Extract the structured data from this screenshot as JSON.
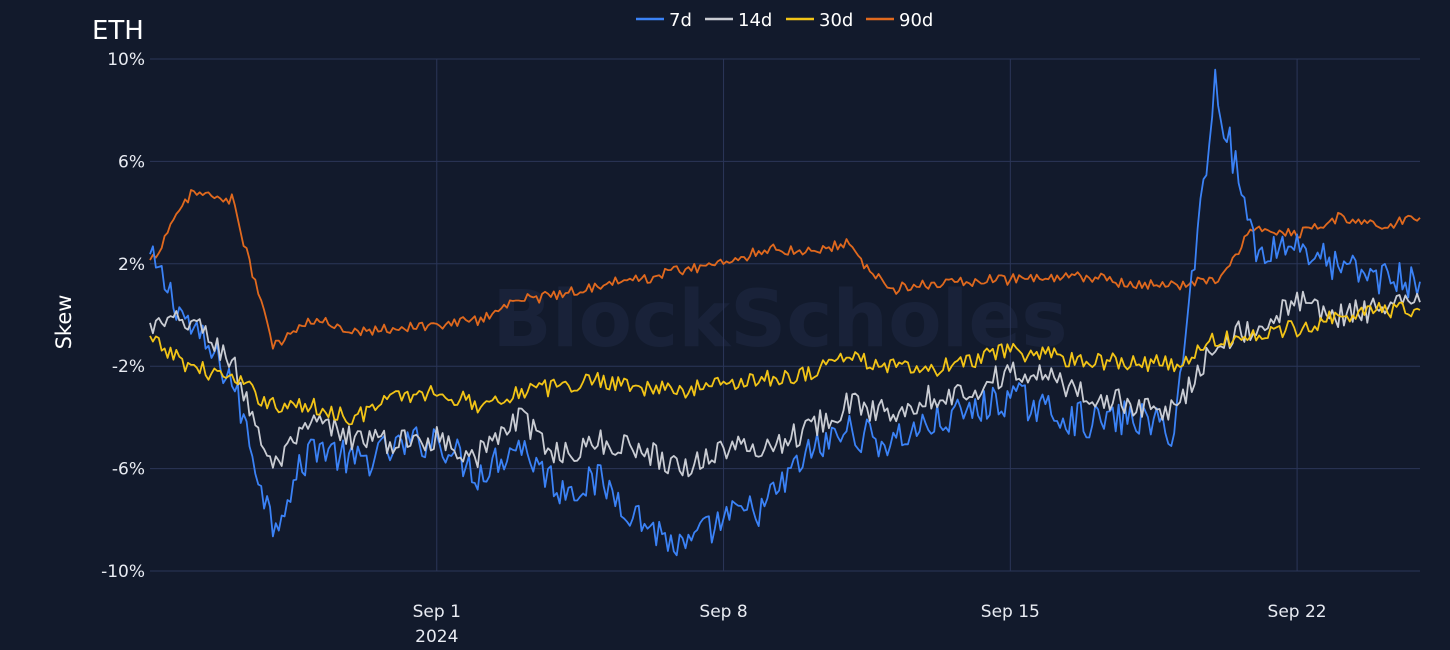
{
  "chart_data": {
    "type": "line",
    "title": "ETH",
    "ylabel": "Skew",
    "xlabel": "",
    "ylim": [
      -10,
      10
    ],
    "yticks": [
      10,
      6,
      2,
      -2,
      -6,
      -10
    ],
    "ytick_labels": [
      "10%",
      "6%",
      "2%",
      "-2%",
      "-6%",
      "-10%"
    ],
    "xlim": [
      "2024-08-25",
      "2024-09-25"
    ],
    "xticks": [
      {
        "date": "2024-09-01",
        "label": "Sep 1",
        "sublabel": "2024"
      },
      {
        "date": "2024-09-08",
        "label": "Sep 8",
        "sublabel": ""
      },
      {
        "date": "2024-09-15",
        "label": "Sep 15",
        "sublabel": ""
      },
      {
        "date": "2024-09-22",
        "label": "Sep 22",
        "sublabel": ""
      }
    ],
    "grid": true,
    "legend_position": "top-center",
    "watermark": "BlockScholes",
    "series": [
      {
        "name": "7d",
        "color": "#3b82f6",
        "x": [
          "2024-08-25",
          "2024-08-26",
          "2024-08-27",
          "2024-08-28",
          "2024-08-29",
          "2024-08-30",
          "2024-08-31",
          "2024-09-01",
          "2024-09-02",
          "2024-09-03",
          "2024-09-04",
          "2024-09-05",
          "2024-09-06",
          "2024-09-07",
          "2024-09-08",
          "2024-09-09",
          "2024-09-10",
          "2024-09-11",
          "2024-09-12",
          "2024-09-13",
          "2024-09-14",
          "2024-09-15",
          "2024-09-16",
          "2024-09-17",
          "2024-09-18",
          "2024-09-19",
          "2024-09-20",
          "2024-09-21",
          "2024-09-22",
          "2024-09-23",
          "2024-09-24",
          "2024-09-25"
        ],
        "values": [
          2.2,
          -0.5,
          -2.5,
          -8.2,
          -5.0,
          -5.8,
          -5.2,
          -4.8,
          -6.2,
          -5.0,
          -6.8,
          -6.5,
          -8.0,
          -9.2,
          -8.0,
          -7.5,
          -5.5,
          -4.5,
          -5.0,
          -4.3,
          -3.8,
          -3.2,
          -3.8,
          -4.2,
          -4.0,
          -4.5,
          9.0,
          2.5,
          2.8,
          1.8,
          1.5,
          1.3
        ]
      },
      {
        "name": "14d",
        "color": "#c9ccd3",
        "x": [
          "2024-08-25",
          "2024-08-26",
          "2024-08-27",
          "2024-08-28",
          "2024-08-29",
          "2024-08-30",
          "2024-08-31",
          "2024-09-01",
          "2024-09-02",
          "2024-09-03",
          "2024-09-04",
          "2024-09-05",
          "2024-09-06",
          "2024-09-07",
          "2024-09-08",
          "2024-09-09",
          "2024-09-10",
          "2024-09-11",
          "2024-09-12",
          "2024-09-13",
          "2024-09-14",
          "2024-09-15",
          "2024-09-16",
          "2024-09-17",
          "2024-09-18",
          "2024-09-19",
          "2024-09-20",
          "2024-09-21",
          "2024-09-22",
          "2024-09-23",
          "2024-09-24",
          "2024-09-25"
        ],
        "values": [
          -0.5,
          -0.2,
          -1.8,
          -6.0,
          -4.2,
          -4.8,
          -5.0,
          -4.8,
          -5.5,
          -4.0,
          -5.5,
          -5.0,
          -5.2,
          -6.0,
          -5.2,
          -5.2,
          -4.5,
          -3.5,
          -3.8,
          -3.2,
          -3.0,
          -2.2,
          -2.5,
          -3.2,
          -3.5,
          -3.8,
          -1.0,
          -0.5,
          0.5,
          0.0,
          0.2,
          0.5
        ]
      },
      {
        "name": "30d",
        "color": "#f2c417",
        "x": [
          "2024-08-25",
          "2024-08-26",
          "2024-08-27",
          "2024-08-28",
          "2024-08-29",
          "2024-08-30",
          "2024-08-31",
          "2024-09-01",
          "2024-09-02",
          "2024-09-03",
          "2024-09-04",
          "2024-09-05",
          "2024-09-06",
          "2024-09-07",
          "2024-09-08",
          "2024-09-09",
          "2024-09-10",
          "2024-09-11",
          "2024-09-12",
          "2024-09-13",
          "2024-09-14",
          "2024-09-15",
          "2024-09-16",
          "2024-09-17",
          "2024-09-18",
          "2024-09-19",
          "2024-09-20",
          "2024-09-21",
          "2024-09-22",
          "2024-09-23",
          "2024-09-24",
          "2024-09-25"
        ],
        "values": [
          -1.0,
          -2.0,
          -2.5,
          -3.5,
          -3.6,
          -4.0,
          -3.2,
          -3.0,
          -3.5,
          -3.0,
          -2.8,
          -2.5,
          -2.8,
          -3.0,
          -2.6,
          -2.5,
          -2.3,
          -1.6,
          -2.0,
          -2.2,
          -1.8,
          -1.4,
          -1.6,
          -1.8,
          -1.8,
          -2.0,
          -1.0,
          -0.8,
          -0.5,
          0.0,
          0.2,
          0.2
        ]
      },
      {
        "name": "90d",
        "color": "#e0691e",
        "x": [
          "2024-08-25",
          "2024-08-26",
          "2024-08-27",
          "2024-08-28",
          "2024-08-29",
          "2024-08-30",
          "2024-08-31",
          "2024-09-01",
          "2024-09-02",
          "2024-09-03",
          "2024-09-04",
          "2024-09-05",
          "2024-09-06",
          "2024-09-07",
          "2024-09-08",
          "2024-09-09",
          "2024-09-10",
          "2024-09-11",
          "2024-09-12",
          "2024-09-13",
          "2024-09-14",
          "2024-09-15",
          "2024-09-16",
          "2024-09-17",
          "2024-09-18",
          "2024-09-19",
          "2024-09-20",
          "2024-09-21",
          "2024-09-22",
          "2024-09-23",
          "2024-09-24",
          "2024-09-25"
        ],
        "values": [
          2.0,
          4.8,
          4.5,
          -1.2,
          -0.2,
          -0.6,
          -0.5,
          -0.4,
          -0.2,
          0.6,
          0.8,
          1.2,
          1.4,
          1.8,
          2.0,
          2.6,
          2.5,
          2.8,
          1.0,
          1.2,
          1.3,
          1.4,
          1.4,
          1.5,
          1.1,
          1.2,
          1.3,
          3.5,
          3.2,
          3.8,
          3.5,
          3.8
        ]
      }
    ]
  }
}
